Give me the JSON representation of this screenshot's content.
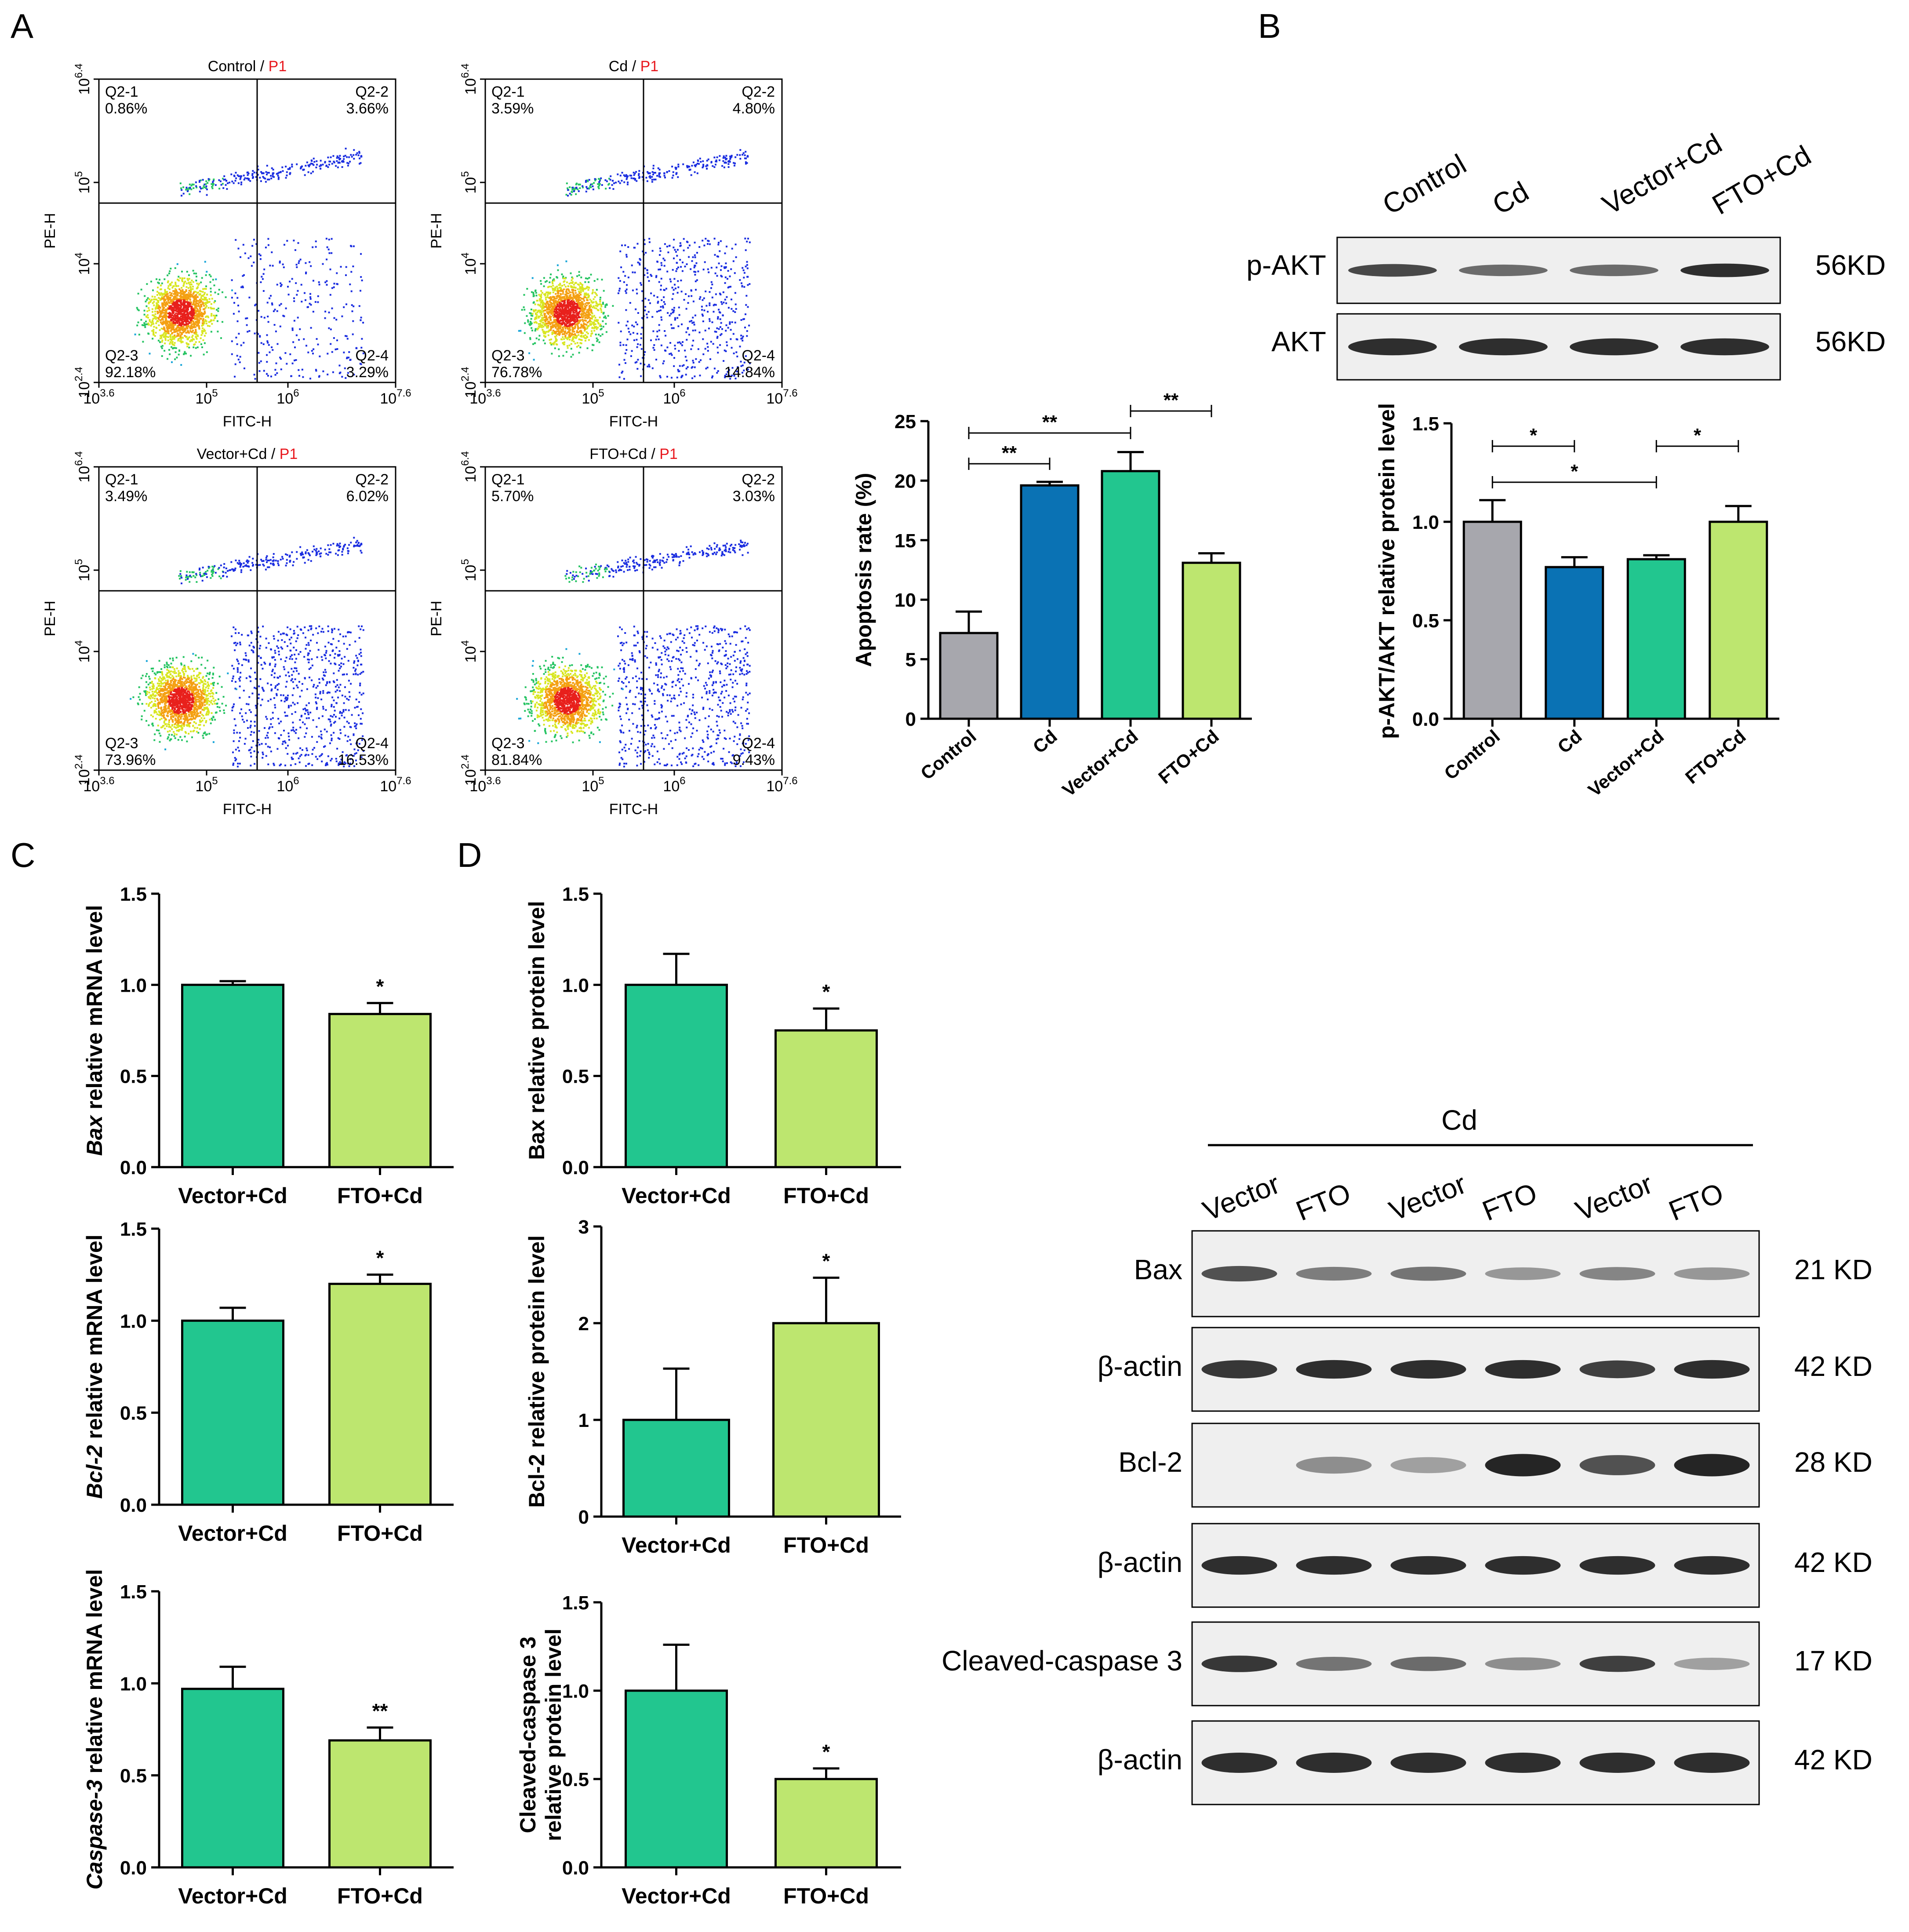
{
  "panel_labels": {
    "a": "A",
    "b": "B",
    "c": "C",
    "d": "D"
  },
  "colors": {
    "control": "#A7A7AD",
    "cd": "#0A72B4",
    "vector_cd": "#22C68F",
    "fto_cd": "#BDE66F",
    "gate_red": "#E8181E"
  },
  "flow": {
    "x_label": "FITC-H",
    "y_label": "PE-H",
    "x_ticks": [
      "10^3.6",
      "10^5",
      "10^6",
      "10^7.6"
    ],
    "y_ticks": [
      "10^2.4",
      "10^4",
      "10^5",
      "10^6.4"
    ],
    "gate": "P1",
    "plots": [
      {
        "name": "Control",
        "q1": "Q2-1",
        "q1v": "0.86%",
        "q2": "Q2-2",
        "q2v": "3.66%",
        "q3": "Q2-3",
        "q3v": "92.18%",
        "q4": "Q2-4",
        "q4v": "3.29%"
      },
      {
        "name": "Cd",
        "q1": "Q2-1",
        "q1v": "3.59%",
        "q2": "Q2-2",
        "q2v": "4.80%",
        "q3": "Q2-3",
        "q3v": "76.78%",
        "q4": "Q2-4",
        "q4v": "14.84%"
      },
      {
        "name": "Vector+Cd",
        "q1": "Q2-1",
        "q1v": "3.49%",
        "q2": "Q2-2",
        "q2v": "6.02%",
        "q3": "Q2-3",
        "q3v": "73.96%",
        "q4": "Q2-4",
        "q4v": "16.53%"
      },
      {
        "name": "FTO+Cd",
        "q1": "Q2-1",
        "q1v": "5.70%",
        "q2": "Q2-2",
        "q2v": "3.03%",
        "q3": "Q2-3",
        "q3v": "81.84%",
        "q4": "Q2-4",
        "q4v": "9.43%"
      }
    ]
  },
  "western_b": {
    "lanes": [
      "Control",
      "Cd",
      "Vector+Cd",
      "FTO+Cd"
    ],
    "rows": [
      {
        "label": "p-AKT",
        "kd": "56KD"
      },
      {
        "label": "AKT",
        "kd": "56KD"
      }
    ]
  },
  "western_d": {
    "group": "Cd",
    "lanes": [
      "Vector",
      "FTO",
      "Vector",
      "FTO",
      "Vector",
      "FTO"
    ],
    "rows": [
      {
        "label": "Bax",
        "kd": "21 KD"
      },
      {
        "label": "β-actin",
        "kd": "42 KD"
      },
      {
        "label": "Bcl-2",
        "kd": "28 KD"
      },
      {
        "label": "β-actin",
        "kd": "42 KD"
      },
      {
        "label": "Cleaved-caspase 3",
        "kd": "17 KD"
      },
      {
        "label": "β-actin",
        "kd": "42 KD"
      }
    ]
  },
  "chart_data": [
    {
      "id": "apoptosis",
      "type": "bar",
      "categories": [
        "Control",
        "Cd",
        "Vector+Cd",
        "FTO+Cd"
      ],
      "values": [
        7.2,
        19.6,
        20.8,
        13.1
      ],
      "errors": [
        1.8,
        0.3,
        1.6,
        0.8
      ],
      "ylabel": "Apoptosis rate (%)",
      "ylim": [
        0,
        25
      ],
      "yticks": [
        "0",
        "5",
        "10",
        "15",
        "20",
        "25"
      ],
      "significance": [
        {
          "from": 0,
          "to": 1,
          "label": "**"
        },
        {
          "from": 0,
          "to": 2,
          "label": "**"
        },
        {
          "from": 2,
          "to": 3,
          "label": "**"
        }
      ]
    },
    {
      "id": "pakt",
      "type": "bar",
      "categories": [
        "Control",
        "Cd",
        "Vector+Cd",
        "FTO+Cd"
      ],
      "values": [
        1.0,
        0.77,
        0.81,
        1.0
      ],
      "errors": [
        0.11,
        0.05,
        0.02,
        0.08
      ],
      "ylabel": "p-AKT/AKT relative protein level",
      "ylim": [
        0,
        1.5
      ],
      "yticks": [
        "0.0",
        "0.5",
        "1.0",
        "1.5"
      ],
      "significance": [
        {
          "from": 0,
          "to": 1,
          "label": "*"
        },
        {
          "from": 0,
          "to": 2,
          "label": "*"
        },
        {
          "from": 2,
          "to": 3,
          "label": "*"
        }
      ]
    },
    {
      "id": "bax_mrna",
      "type": "bar",
      "categories": [
        "Vector+Cd",
        "FTO+Cd"
      ],
      "values": [
        1.0,
        0.84
      ],
      "errors": [
        0.02,
        0.06
      ],
      "ylabel_italic": "Bax",
      "ylabel": " relative mRNA level",
      "ylim": [
        0,
        1.5
      ],
      "yticks": [
        "0.0",
        "0.5",
        "1.0",
        "1.5"
      ],
      "marks": [
        "",
        "*"
      ]
    },
    {
      "id": "bcl2_mrna",
      "type": "bar",
      "categories": [
        "Vector+Cd",
        "FTO+Cd"
      ],
      "values": [
        1.0,
        1.2
      ],
      "errors": [
        0.07,
        0.05
      ],
      "ylabel_italic": "Bcl-2",
      "ylabel": " relative mRNA level",
      "ylim": [
        0,
        1.5
      ],
      "yticks": [
        "0.0",
        "0.5",
        "1.0",
        "1.5"
      ],
      "marks": [
        "",
        "*"
      ]
    },
    {
      "id": "casp3_mrna",
      "type": "bar",
      "categories": [
        "Vector+Cd",
        "FTO+Cd"
      ],
      "values": [
        0.97,
        0.69
      ],
      "errors": [
        0.12,
        0.07
      ],
      "ylabel_italic": "Caspase-3",
      "ylabel": " relative mRNA level",
      "ylim": [
        0,
        1.5
      ],
      "yticks": [
        "0.0",
        "0.5",
        "1.0",
        "1.5"
      ],
      "marks": [
        "",
        "**"
      ]
    },
    {
      "id": "bax_protein",
      "type": "bar",
      "categories": [
        "Vector+Cd",
        "FTO+Cd"
      ],
      "values": [
        1.0,
        0.75
      ],
      "errors": [
        0.17,
        0.12
      ],
      "ylabel": "Bax relative protein level",
      "ylim": [
        0,
        1.5
      ],
      "yticks": [
        "0.0",
        "0.5",
        "1.0",
        "1.5"
      ],
      "marks": [
        "",
        "*"
      ]
    },
    {
      "id": "bcl2_protein",
      "type": "bar",
      "categories": [
        "Vector+Cd",
        "FTO+Cd"
      ],
      "values": [
        1.0,
        2.0
      ],
      "errors": [
        0.53,
        0.47
      ],
      "ylabel": "Bcl-2 relative protein level",
      "ylim": [
        0,
        3
      ],
      "yticks": [
        "0",
        "1",
        "2",
        "3"
      ],
      "marks": [
        "",
        "*"
      ]
    },
    {
      "id": "casp3_protein",
      "type": "bar",
      "categories": [
        "Vector+Cd",
        "FTO+Cd"
      ],
      "values": [
        1.0,
        0.5
      ],
      "errors": [
        0.26,
        0.06
      ],
      "ylabel_lines": [
        "Cleaved-caspase 3",
        "relative protein level"
      ],
      "ylim": [
        0,
        1.5
      ],
      "yticks": [
        "0.0",
        "0.5",
        "1.0",
        "1.5"
      ],
      "marks": [
        "",
        "*"
      ]
    }
  ]
}
